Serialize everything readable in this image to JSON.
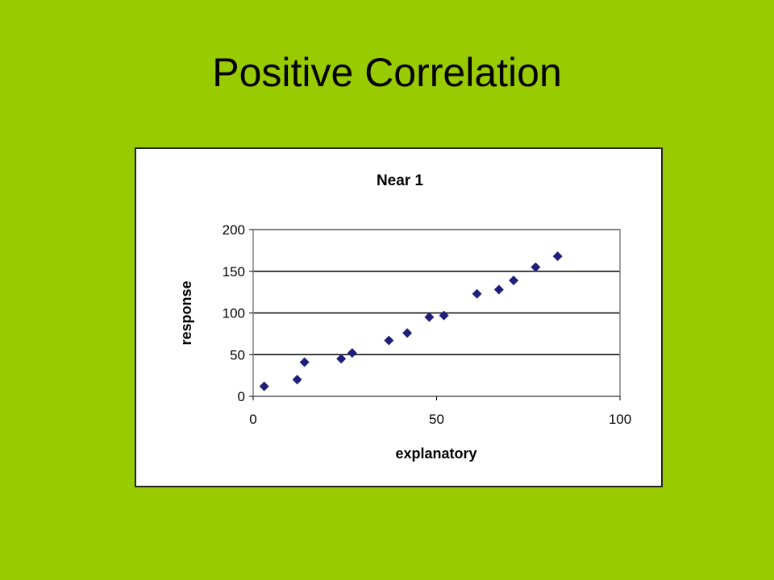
{
  "slide": {
    "title": "Positive Correlation"
  },
  "colors": {
    "background": "#99cc00",
    "marker": "#1f1f7a",
    "gridline": "#000000",
    "plot_border": "#808080"
  },
  "chart_data": {
    "type": "scatter",
    "title": "Near 1",
    "xlabel": "explanatory",
    "ylabel": "response",
    "xlim": [
      0,
      100
    ],
    "ylim": [
      0,
      200
    ],
    "xticks": [
      "0",
      "50",
      "100"
    ],
    "yticks": [
      "0",
      "50",
      "100",
      "150",
      "200"
    ],
    "grid": "horizontal",
    "marker": "diamond",
    "points": [
      {
        "x": 3,
        "y": 12
      },
      {
        "x": 12,
        "y": 20
      },
      {
        "x": 14,
        "y": 41
      },
      {
        "x": 24,
        "y": 45
      },
      {
        "x": 27,
        "y": 52
      },
      {
        "x": 37,
        "y": 67
      },
      {
        "x": 42,
        "y": 76
      },
      {
        "x": 48,
        "y": 95
      },
      {
        "x": 52,
        "y": 97
      },
      {
        "x": 61,
        "y": 123
      },
      {
        "x": 67,
        "y": 128
      },
      {
        "x": 71,
        "y": 139
      },
      {
        "x": 77,
        "y": 155
      },
      {
        "x": 83,
        "y": 168
      }
    ]
  }
}
